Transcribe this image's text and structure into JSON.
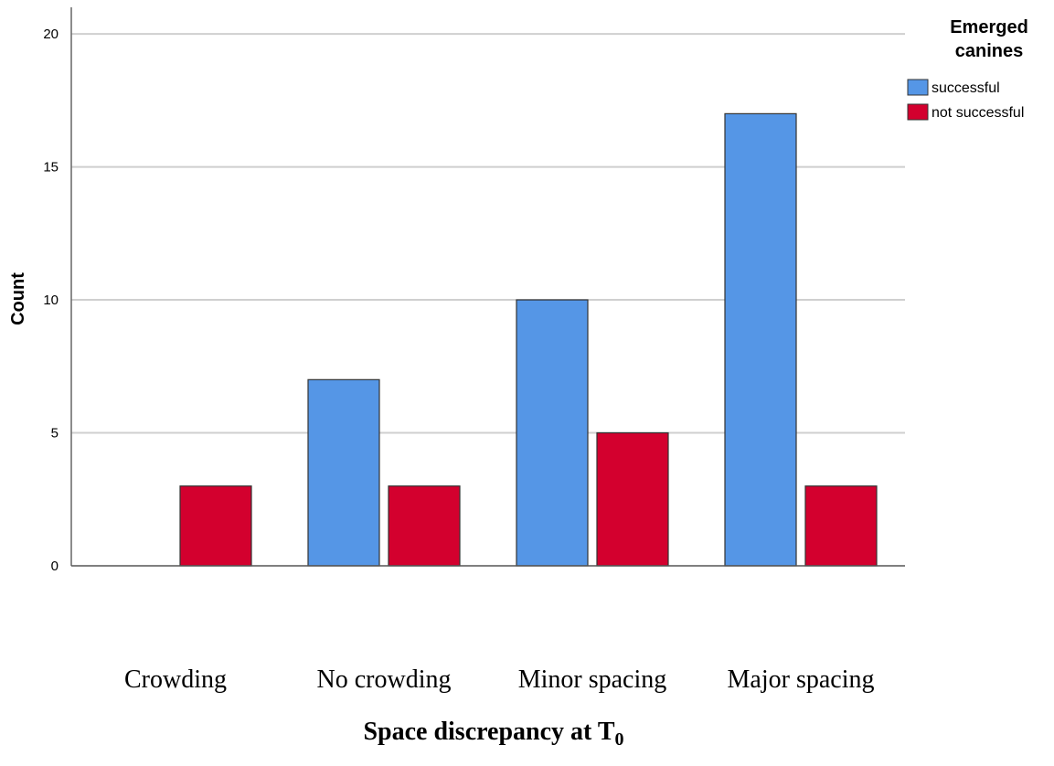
{
  "chart_data": {
    "type": "bar",
    "categories": [
      "Crowding",
      "No crowding",
      "Minor spacing",
      "Major spacing"
    ],
    "series": [
      {
        "name": "successful",
        "values": [
          0,
          7,
          10,
          17
        ],
        "color": "#5596e6"
      },
      {
        "name": "not successful",
        "values": [
          3,
          3,
          5,
          3
        ],
        "color": "#d3002e"
      }
    ],
    "legend_title": "Emerged canines",
    "legend_title_lines": [
      "Emerged",
      "canines"
    ],
    "legend_placement": "top-right",
    "ylabel": "Count",
    "xlabel": "Space discrepancy at T",
    "xlabel_subscript": "0",
    "ylim": [
      0,
      21
    ],
    "yticks": [
      0,
      5,
      10,
      15,
      20
    ],
    "grid": true
  }
}
